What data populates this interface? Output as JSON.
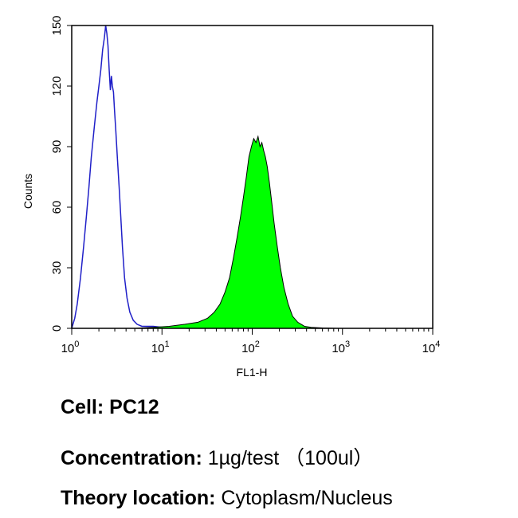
{
  "chart_data": {
    "type": "area",
    "title": "",
    "xlabel": "FL1-H",
    "ylabel": "Counts",
    "x_scale": "log",
    "xlim": [
      1,
      10000
    ],
    "ylim": [
      0,
      150
    ],
    "grid": false,
    "x_ticks": [
      {
        "value": 1,
        "base": "10",
        "exp": "0"
      },
      {
        "value": 10,
        "base": "10",
        "exp": "1"
      },
      {
        "value": 100,
        "base": "10",
        "exp": "2"
      },
      {
        "value": 1000,
        "base": "10",
        "exp": "3"
      },
      {
        "value": 10000,
        "base": "10",
        "exp": "4"
      }
    ],
    "y_ticks": [
      0,
      30,
      60,
      90,
      120,
      150
    ],
    "series": [
      {
        "style": "outline",
        "color": "#1f1fc8",
        "points": [
          [
            1.0,
            0
          ],
          [
            1.08,
            5
          ],
          [
            1.15,
            12
          ],
          [
            1.25,
            25
          ],
          [
            1.35,
            40
          ],
          [
            1.45,
            55
          ],
          [
            1.55,
            70
          ],
          [
            1.65,
            85
          ],
          [
            1.78,
            100
          ],
          [
            1.9,
            112
          ],
          [
            2.0,
            120
          ],
          [
            2.1,
            128
          ],
          [
            2.2,
            138
          ],
          [
            2.3,
            144
          ],
          [
            2.38,
            150
          ],
          [
            2.45,
            146
          ],
          [
            2.52,
            140
          ],
          [
            2.6,
            128
          ],
          [
            2.68,
            118
          ],
          [
            2.75,
            125
          ],
          [
            2.82,
            120
          ],
          [
            2.9,
            117
          ],
          [
            2.98,
            108
          ],
          [
            3.08,
            98
          ],
          [
            3.2,
            85
          ],
          [
            3.35,
            70
          ],
          [
            3.5,
            55
          ],
          [
            3.65,
            40
          ],
          [
            3.85,
            25
          ],
          [
            4.1,
            15
          ],
          [
            4.4,
            8
          ],
          [
            4.8,
            4
          ],
          [
            5.3,
            2
          ],
          [
            6.0,
            1
          ],
          [
            7.0,
            1
          ],
          [
            8.0,
            1
          ],
          [
            10.0,
            0.5
          ],
          [
            15.0,
            0.3
          ],
          [
            20.0,
            0
          ]
        ]
      },
      {
        "style": "filled",
        "color": "#00ff00",
        "points": [
          [
            5,
            0
          ],
          [
            8,
            0.5
          ],
          [
            12,
            1
          ],
          [
            18,
            2
          ],
          [
            25,
            3
          ],
          [
            32,
            5
          ],
          [
            38,
            8
          ],
          [
            44,
            12
          ],
          [
            50,
            18
          ],
          [
            56,
            25
          ],
          [
            62,
            35
          ],
          [
            68,
            45
          ],
          [
            74,
            55
          ],
          [
            80,
            65
          ],
          [
            86,
            75
          ],
          [
            92,
            85
          ],
          [
            98,
            90
          ],
          [
            104,
            94
          ],
          [
            110,
            92
          ],
          [
            116,
            95
          ],
          [
            122,
            90
          ],
          [
            128,
            92
          ],
          [
            134,
            88
          ],
          [
            140,
            85
          ],
          [
            147,
            80
          ],
          [
            155,
            72
          ],
          [
            165,
            62
          ],
          [
            175,
            52
          ],
          [
            190,
            40
          ],
          [
            205,
            30
          ],
          [
            225,
            20
          ],
          [
            250,
            12
          ],
          [
            280,
            6
          ],
          [
            320,
            3
          ],
          [
            380,
            1
          ],
          [
            450,
            0.5
          ],
          [
            600,
            0.2
          ],
          [
            900,
            0
          ]
        ]
      }
    ]
  },
  "captions": {
    "cell_label": "Cell:",
    "cell_value": "PC12",
    "concentration_label": "Concentration:",
    "concentration_value": "1µg/test （100ul）",
    "theory_label": "Theory location:",
    "theory_value": "Cytoplasm/Nucleus"
  }
}
